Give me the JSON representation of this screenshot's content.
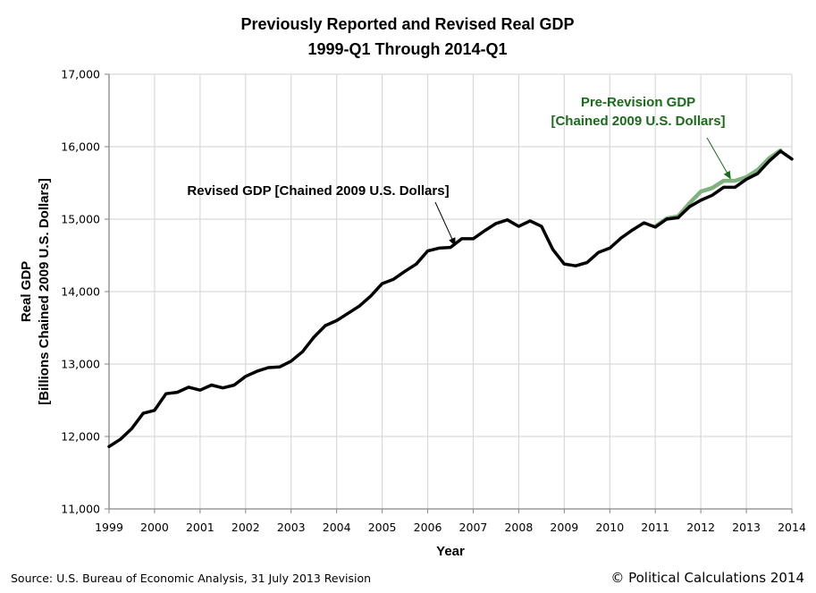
{
  "chart_data": {
    "type": "line",
    "title": "Previously Reported and Revised Real GDP",
    "subtitle": "1999-Q1 Through 2014-Q1",
    "xlabel": "Year",
    "ylabel_line1": "Real GDP",
    "ylabel_line2": "[Billions Chained 2009 U.S. Dollars]",
    "xlim": [
      1999,
      2014
    ],
    "ylim": [
      11000,
      17000
    ],
    "x_ticks": [
      "1999",
      "2000",
      "2001",
      "2002",
      "2003",
      "2004",
      "2005",
      "2006",
      "2007",
      "2008",
      "2009",
      "2010",
      "2011",
      "2012",
      "2013",
      "2014"
    ],
    "y_ticks": [
      "11,000",
      "12,000",
      "13,000",
      "14,000",
      "15,000",
      "16,000",
      "17,000"
    ],
    "y_tick_values": [
      11000,
      12000,
      13000,
      14000,
      15000,
      16000,
      17000
    ],
    "grid": true,
    "series": [
      {
        "name": "Pre-Revision GDP [Chained 2009 U.S. Dollars]",
        "color": "#7fb27f",
        "x_start": 2011.0,
        "step": 0.25,
        "values": [
          14900,
          15010,
          15040,
          15220,
          15380,
          15430,
          15530,
          15530,
          15580,
          15680,
          15840,
          15950
        ]
      },
      {
        "name": "Revised GDP [Chained 2009 U.S. Dollars]",
        "color": "#000000",
        "x_start": 1999.0,
        "step": 0.25,
        "values": [
          11860,
          11960,
          12110,
          12320,
          12360,
          12590,
          12610,
          12680,
          12640,
          12710,
          12670,
          12710,
          12830,
          12900,
          12950,
          12960,
          13040,
          13170,
          13370,
          13530,
          13600,
          13700,
          13800,
          13940,
          14110,
          14170,
          14280,
          14380,
          14560,
          14600,
          14610,
          14730,
          14730,
          14840,
          14940,
          14990,
          14900,
          14975,
          14900,
          14580,
          14380,
          14355,
          14400,
          14540,
          14600,
          14740,
          14850,
          14950,
          14890,
          15000,
          15020,
          15170,
          15260,
          15330,
          15440,
          15440,
          15550,
          15630,
          15800,
          15940,
          15830
        ]
      }
    ],
    "annotations": [
      {
        "text": "Revised GDP [Chained 2009 U.S. Dollars]",
        "color": "#000000",
        "arrow_to_x": 2006.6,
        "arrow_to_y": 14640
      },
      {
        "text_line1": "Pre-Revision GDP",
        "text_line2": "[Chained 2009 U.S. Dollars]",
        "color": "#1a6b1a",
        "arrow_to_x": 2012.65,
        "arrow_to_y": 15560
      }
    ],
    "legend": "none"
  },
  "footer": {
    "source": "Source: U.S. Bureau of Economic Analysis, 31 July 2013 Revision",
    "copyright": "© Political Calculations 2014"
  }
}
